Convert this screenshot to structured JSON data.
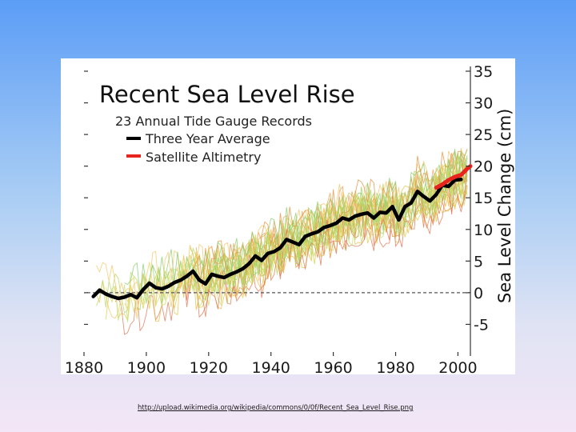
{
  "slide": {
    "source_url": "http://upload.wikimedia.org/wikipedia/commons/0/0f/Recent_Sea_Level_Rise.png"
  },
  "chart_data": {
    "type": "line",
    "title": "Recent Sea Level Rise",
    "subtitle": "23 Annual Tide Gauge Records",
    "xlabel": "",
    "ylabel": "Sea Level Change (cm)",
    "xlim": [
      1880,
      2004
    ],
    "ylim": [
      -10,
      35
    ],
    "x_ticks": [
      1880,
      1900,
      1920,
      1940,
      1960,
      1980,
      2000
    ],
    "y_ticks": [
      35,
      30,
      25,
      20,
      15,
      10,
      5,
      0,
      -5
    ],
    "zero_line": 0,
    "legend": {
      "placement": "top-left",
      "entries": [
        {
          "label": "23 Annual Tide Gauge Records",
          "color": "#e8c24a"
        },
        {
          "label": "Three Year Average",
          "color": "#000000"
        },
        {
          "label": "Satellite Altimetry",
          "color": "#e8241f"
        }
      ]
    },
    "series": [
      {
        "name": "Three Year Average",
        "color": "#000000",
        "x": [
          1883,
          1885,
          1887,
          1889,
          1891,
          1893,
          1895,
          1897,
          1899,
          1901,
          1903,
          1905,
          1907,
          1909,
          1911,
          1913,
          1915,
          1917,
          1919,
          1921,
          1923,
          1925,
          1927,
          1929,
          1931,
          1933,
          1935,
          1937,
          1939,
          1941,
          1943,
          1945,
          1947,
          1949,
          1951,
          1953,
          1955,
          1957,
          1959,
          1961,
          1963,
          1965,
          1967,
          1969,
          1971,
          1973,
          1975,
          1977,
          1979,
          1981,
          1983,
          1985,
          1987,
          1989,
          1991,
          1993,
          1995,
          1997,
          1999,
          2001
        ],
        "values": [
          -0.6,
          0.4,
          -0.2,
          -0.6,
          -0.9,
          -0.7,
          -0.3,
          -0.8,
          0.5,
          1.5,
          0.8,
          0.6,
          1.0,
          1.6,
          2.0,
          2.6,
          3.4,
          2.0,
          1.4,
          2.9,
          2.6,
          2.4,
          2.9,
          3.3,
          3.8,
          4.6,
          5.8,
          5.1,
          6.2,
          6.5,
          7.1,
          8.4,
          8.0,
          7.6,
          8.9,
          9.3,
          9.6,
          10.3,
          10.6,
          11.0,
          11.8,
          11.5,
          12.1,
          12.4,
          12.6,
          11.8,
          12.7,
          12.6,
          13.6,
          11.5,
          13.6,
          14.2,
          16.0,
          15.2,
          14.5,
          15.5,
          17.0,
          16.8,
          17.8,
          17.9
        ]
      },
      {
        "name": "Satellite Altimetry",
        "color": "#e8241f",
        "x": [
          1993,
          1995,
          1997,
          1999,
          2001,
          2003,
          2004
        ],
        "values": [
          16.6,
          17.1,
          17.8,
          18.3,
          18.6,
          19.6,
          20.0
        ]
      }
    ]
  }
}
